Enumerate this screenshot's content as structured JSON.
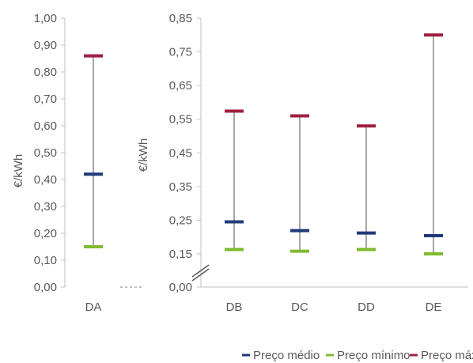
{
  "chart_data": [
    {
      "type": "range",
      "ylabel": "€/kWh",
      "ylim": [
        0.0,
        1.0
      ],
      "yticks": [
        "0,00",
        "0,10",
        "0,20",
        "0,30",
        "0,40",
        "0,50",
        "0,60",
        "0,70",
        "0,80",
        "0,90",
        "1,00"
      ],
      "categories": [
        "DA"
      ],
      "series": [
        {
          "name": "Preço médio",
          "values": [
            0.42
          ]
        },
        {
          "name": "Preço mínimo",
          "values": [
            0.15
          ]
        },
        {
          "name": "Preço máximo",
          "values": [
            0.86
          ]
        }
      ]
    },
    {
      "type": "range",
      "ylabel": "€/kWh",
      "ylim": [
        0.0,
        0.85
      ],
      "axis_break": true,
      "yticks": [
        "0,00",
        "0,15",
        "0,25",
        "0,35",
        "0,45",
        "0,55",
        "0,65",
        "0,75",
        "0,85"
      ],
      "categories": [
        "DB",
        "DC",
        "DD",
        "DE"
      ],
      "series": [
        {
          "name": "Preço médio",
          "values": [
            0.245,
            0.219,
            0.212,
            0.204
          ]
        },
        {
          "name": "Preço mínimo",
          "values": [
            0.163,
            0.158,
            0.163,
            0.15
          ]
        },
        {
          "name": "Preço máximo",
          "values": [
            0.574,
            0.56,
            0.53,
            0.8
          ]
        }
      ]
    }
  ],
  "legend": {
    "position": "bottom-right",
    "items": [
      {
        "label": "Preço médio",
        "color": "#1f3a78"
      },
      {
        "label": "Preço mínimo",
        "color": "#7fba2f"
      },
      {
        "label": "Preço máximo",
        "color": "#9e1f3f"
      }
    ]
  },
  "colors": {
    "whisker": "#888888",
    "axis": "#bfbfbf",
    "text": "#595959"
  }
}
